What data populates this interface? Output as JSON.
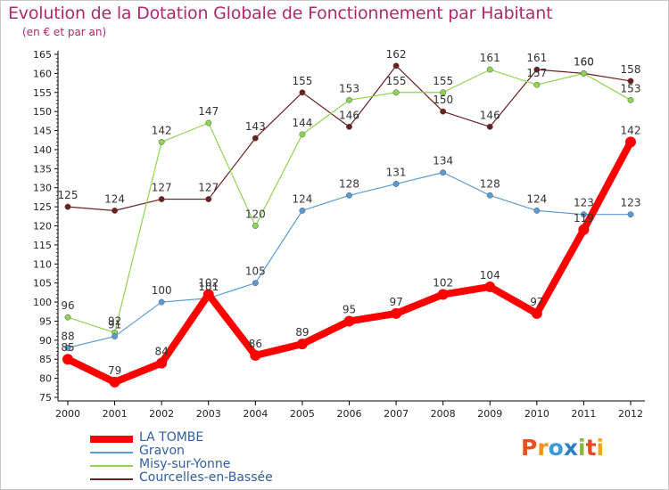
{
  "header": {
    "title": "Evolution de la Dotation Globale de Fonctionnement par Habitant",
    "subtitle": "(en € et par an)"
  },
  "colors": {
    "axis": "#000000",
    "tick_text": "#222222",
    "data_label": "#333333",
    "gridline": "#ffffff"
  },
  "logo": {
    "text": "Proxiti",
    "letter_colors": [
      "#e8501c",
      "#f39019",
      "#3a9ad9",
      "#2b7fc4",
      "#8ab63b",
      "#e84b23",
      "#f2a516"
    ]
  },
  "chart_data": {
    "type": "line",
    "title": "Evolution de la Dotation Globale de Fonctionnement par Habitant",
    "subtitle": "(en € et par an)",
    "x": [
      "2000",
      "2001",
      "2002",
      "2003",
      "2004",
      "2005",
      "2006",
      "2007",
      "2008",
      "2009",
      "2010",
      "2011",
      "2012"
    ],
    "ylim": [
      75,
      165
    ],
    "y_ticks": [
      75,
      80,
      85,
      90,
      95,
      100,
      105,
      110,
      115,
      120,
      125,
      130,
      135,
      140,
      145,
      150,
      155,
      160,
      165
    ],
    "grid": false,
    "legend_position": "bottom-left",
    "series": [
      {
        "name": "LA TOMBE",
        "color": "#ff0000",
        "values": [
          85,
          79,
          84,
          102,
          86,
          89,
          95,
          97,
          102,
          104,
          97,
          119,
          142
        ]
      },
      {
        "name": "Gravon",
        "color": "#5a9bd4",
        "values": [
          88,
          91,
          100,
          101,
          105,
          124,
          128,
          131,
          134,
          128,
          124,
          123,
          123
        ]
      },
      {
        "name": "Misy-sur-Yonne",
        "color": "#8ed452",
        "values": [
          96,
          92,
          142,
          147,
          120,
          144,
          153,
          155,
          155,
          161,
          157,
          160,
          153
        ]
      },
      {
        "name": "Courcelles-en-Bassée",
        "color": "#6b1f1f",
        "values": [
          125,
          124,
          127,
          127,
          143,
          155,
          146,
          162,
          150,
          146,
          161,
          160,
          158
        ]
      }
    ]
  }
}
